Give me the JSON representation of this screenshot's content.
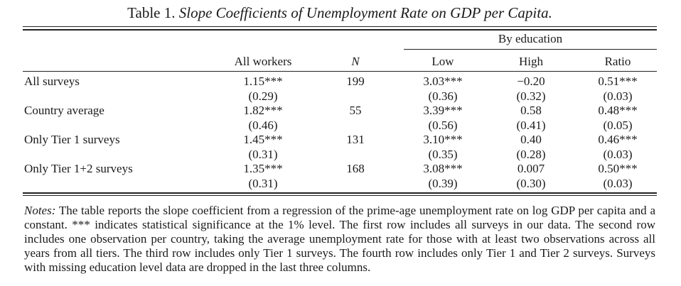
{
  "caption": {
    "number": "Table 1.",
    "title": "Slope Coefficients of Unemployment Rate on GDP per Capita."
  },
  "header": {
    "group_label": "By education",
    "columns": [
      "All workers",
      "N",
      "Low",
      "High",
      "Ratio"
    ]
  },
  "rows": [
    {
      "label": "All surveys",
      "all_workers": {
        "coef": "1.15***",
        "se": "(0.29)"
      },
      "n": "199",
      "low": {
        "coef": "3.03***",
        "se": "(0.36)"
      },
      "high": {
        "coef": "−0.20",
        "se": "(0.32)"
      },
      "ratio": {
        "coef": "0.51***",
        "se": "(0.03)"
      }
    },
    {
      "label": "Country average",
      "all_workers": {
        "coef": "1.82***",
        "se": "(0.46)"
      },
      "n": "55",
      "low": {
        "coef": "3.39***",
        "se": "(0.56)"
      },
      "high": {
        "coef": "0.58",
        "se": "(0.41)"
      },
      "ratio": {
        "coef": "0.48***",
        "se": "(0.05)"
      }
    },
    {
      "label": "Only Tier 1 surveys",
      "all_workers": {
        "coef": "1.45***",
        "se": "(0.31)"
      },
      "n": "131",
      "low": {
        "coef": "3.10***",
        "se": "(0.35)"
      },
      "high": {
        "coef": "0.40",
        "se": "(0.28)"
      },
      "ratio": {
        "coef": "0.46***",
        "se": "(0.03)"
      }
    },
    {
      "label": "Only Tier 1+2 surveys",
      "all_workers": {
        "coef": "1.35***",
        "se": "(0.31)"
      },
      "n": "168",
      "low": {
        "coef": "3.08***",
        "se": "(0.39)"
      },
      "high": {
        "coef": "0.007",
        "se": "(0.30)"
      },
      "ratio": {
        "coef": "0.50***",
        "se": "(0.03)"
      }
    }
  ],
  "notes": {
    "label": "Notes:",
    "text": "The table reports the slope coefficient from a regression of the prime-age unemployment rate on log GDP per capita and a constant. *** indicates statistical significance at the 1% level. The first row includes all surveys in our data. The second row includes one observation per country, taking the average unemployment rate for those with at least two observations across all years from all tiers. The third row includes only Tier 1 surveys. The fourth row includes only Tier 1 and Tier 2 surveys. Surveys with missing education level data are dropped in the last three columns."
  }
}
